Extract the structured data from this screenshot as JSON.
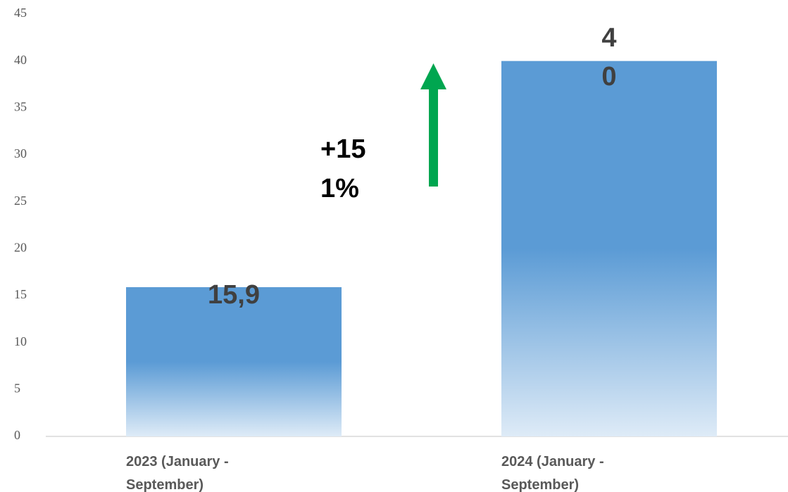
{
  "chart_data": {
    "type": "bar",
    "categories": [
      "2023 (January - September)",
      "2024 (January - September)"
    ],
    "values": [
      15.9,
      40
    ],
    "value_labels": [
      "15,9",
      "40"
    ],
    "color": "#5b9bd5",
    "ylim": [
      0,
      45
    ],
    "yticks": [
      0,
      5,
      10,
      15,
      20,
      25,
      30,
      35,
      40,
      45
    ],
    "annotation": "+151%",
    "grid": false
  }
}
